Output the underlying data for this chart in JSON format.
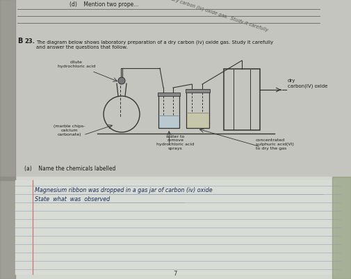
{
  "bg_top": "#c8c8c4",
  "bg_paper": "#d8d8d2",
  "bg_answer": "#dcdcd8",
  "bg_notebook": "#e0e0dc",
  "page_bg": "#b8b8b4",
  "text_color": "#1a1a1a",
  "gray_text": "#333333",
  "line_color": "#444444",
  "ruled_color": "#888888",
  "ruled_color2": "#aaaaaa",
  "hand_color": "#1a2a5a",
  "margin_line": "#cc4444",
  "top_text": "(d)    Mention two prope...",
  "diagonal_text": "ion of a dry carbon (iv) oxide gas.  Study it carefully",
  "q_num": "23.",
  "q_text1": "The diagram below shows laboratory preparation of a dry carbon (iv) oxide gas. Study it carefully",
  "q_text2": "and answer the questions that follow.",
  "lbl_acid": "dilute\nhydrochloric acid",
  "lbl_marble": "(marble chips-\ncalcium\ncarbonate)",
  "lbl_water": "water to\nremove\nhydrochloric acid\nsprays",
  "lbl_conc": "concentrated\nsulphuric acid(VI)\nto dry the gas",
  "lbl_dry": "dry\ncarbon(IV) oxide",
  "sub_q": "(a)    Name the chemicals labelled",
  "hw1": "Magnesium ribbon was dropped in a gas jar of carbon (iv) oxide",
  "hw2": "State  what  was  observed",
  "pg": "7"
}
